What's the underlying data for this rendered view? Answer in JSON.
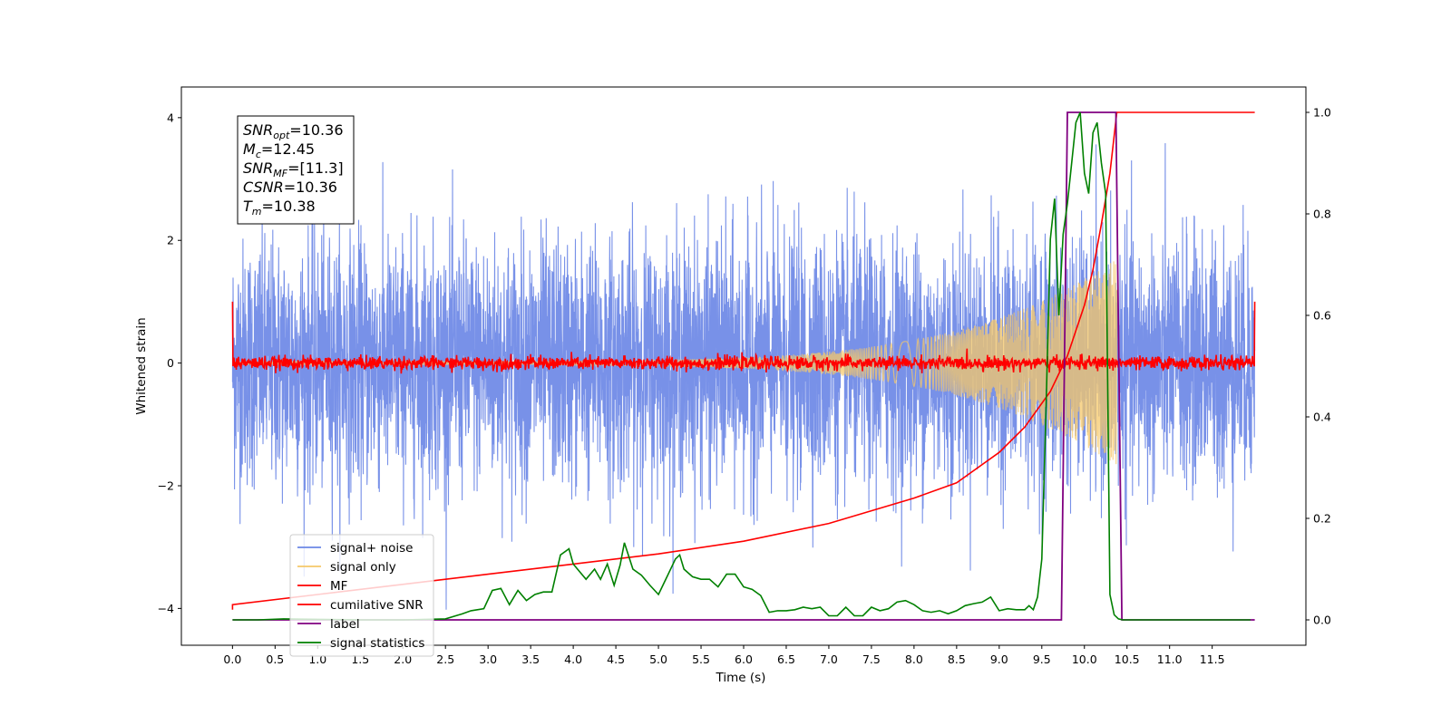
{
  "chart_data": {
    "type": "line",
    "xlabel": "Time (s)",
    "ylabel": "Whitened strain",
    "xlim": [
      -0.6,
      12.6
    ],
    "ylim": [
      -4.6,
      4.5
    ],
    "y2lim": [
      -0.05,
      1.05
    ],
    "x_ticks": [
      0.0,
      0.5,
      1.0,
      1.5,
      2.0,
      2.5,
      3.0,
      3.5,
      4.0,
      4.5,
      5.0,
      5.5,
      6.0,
      6.5,
      7.0,
      7.5,
      8.0,
      8.5,
      9.0,
      9.5,
      10.0,
      10.5,
      11.0,
      11.5
    ],
    "x_tick_labels": [
      "0.0",
      "0.5",
      "1.0",
      "1.5",
      "2.0",
      "2.5",
      "3.0",
      "3.5",
      "4.0",
      "4.5",
      "5.0",
      "5.5",
      "6.0",
      "6.5",
      "7.0",
      "7.5",
      "8.0",
      "8.5",
      "9.0",
      "9.5",
      "10.0",
      "10.5",
      "11.0",
      "11.5"
    ],
    "y_ticks": [
      -4,
      -2,
      0,
      2,
      4
    ],
    "y_tick_labels": [
      "−4",
      "−2",
      "0",
      "2",
      "4"
    ],
    "y2_ticks": [
      0.0,
      0.2,
      0.4,
      0.6,
      0.8,
      1.0
    ],
    "y2_tick_labels": [
      "0.0",
      "0.2",
      "0.4",
      "0.6",
      "0.8",
      "1.0"
    ],
    "legend_position": "lower-left",
    "grid": false,
    "stats_box": [
      {
        "var": "SNR",
        "sub": "opt",
        "value": "=10.36"
      },
      {
        "var": "M",
        "sub": "c",
        "value": "=12.45"
      },
      {
        "var": "SNR",
        "sub": "MF",
        "value": "=[11.3]"
      },
      {
        "var": "CSNR",
        "sub": "",
        "value": "=10.36"
      },
      {
        "var": "T",
        "sub": "m",
        "value": "=10.38"
      }
    ],
    "series": [
      {
        "name": "signal+ noise",
        "axis": "left",
        "color": "#6c88e6",
        "description_values": {
          "x_range": [
            0.0,
            12.0
          ],
          "amplitude_std": 1.0,
          "peak_max": 4.05,
          "peak_min": -4.1
        }
      },
      {
        "name": "signal only",
        "axis": "left",
        "color": "#f5c86a",
        "chirp": {
          "x_start": 0.0,
          "x_end": 10.38,
          "amplitude_start": 0.03,
          "amplitude_end": 1.7
        }
      },
      {
        "name": "MF",
        "axis": "left",
        "color": "#ff0000",
        "description_values": {
          "x_range": [
            0.0,
            12.0
          ],
          "level": 0.0,
          "edge_value": 1.0
        }
      },
      {
        "name": "cumilative SNR",
        "axis": "right",
        "color": "#ff0000",
        "x": [
          0.0,
          0.0,
          1.0,
          2.0,
          3.0,
          4.0,
          5.0,
          6.0,
          7.0,
          8.0,
          8.5,
          9.0,
          9.3,
          9.6,
          9.8,
          10.0,
          10.1,
          10.2,
          10.3,
          10.38,
          12.0
        ],
        "values": [
          0.02,
          0.03,
          0.05,
          0.07,
          0.09,
          0.11,
          0.13,
          0.155,
          0.19,
          0.24,
          0.27,
          0.33,
          0.38,
          0.45,
          0.52,
          0.62,
          0.69,
          0.78,
          0.88,
          1.0,
          1.0
        ]
      },
      {
        "name": "label",
        "axis": "right",
        "color": "#800080",
        "x": [
          0.0,
          9.73,
          9.8,
          10.37,
          10.44,
          12.0
        ],
        "values": [
          0.0,
          0.0,
          1.0,
          1.0,
          0.0,
          0.0
        ]
      },
      {
        "name": "signal statistics",
        "axis": "right",
        "color": "#008000",
        "x": [
          0.0,
          0.3,
          0.6,
          1.0,
          1.5,
          2.0,
          2.5,
          2.7,
          2.8,
          2.95,
          3.05,
          3.15,
          3.25,
          3.35,
          3.45,
          3.55,
          3.65,
          3.75,
          3.85,
          3.95,
          4.0,
          4.05,
          4.15,
          4.25,
          4.32,
          4.4,
          4.48,
          4.55,
          4.6,
          4.7,
          4.8,
          4.9,
          5.0,
          5.1,
          5.2,
          5.25,
          5.3,
          5.4,
          5.5,
          5.6,
          5.7,
          5.8,
          5.9,
          6.0,
          6.1,
          6.2,
          6.3,
          6.4,
          6.5,
          6.6,
          6.7,
          6.8,
          6.9,
          7.0,
          7.1,
          7.2,
          7.3,
          7.4,
          7.5,
          7.6,
          7.7,
          7.8,
          7.9,
          8.0,
          8.1,
          8.2,
          8.3,
          8.4,
          8.5,
          8.6,
          8.7,
          8.8,
          8.9,
          9.0,
          9.1,
          9.2,
          9.3,
          9.35,
          9.4,
          9.45,
          9.5,
          9.55,
          9.6,
          9.65,
          9.7,
          9.75,
          9.8,
          9.85,
          9.9,
          9.95,
          10.0,
          10.05,
          10.1,
          10.15,
          10.2,
          10.25,
          10.3,
          10.35,
          10.4,
          10.45,
          10.5,
          10.6,
          11.0,
          11.5,
          11.95
        ],
        "values": [
          0.0,
          0.0,
          0.002,
          0.001,
          0.0,
          0.0,
          0.002,
          0.012,
          0.018,
          0.022,
          0.058,
          0.062,
          0.03,
          0.058,
          0.038,
          0.05,
          0.055,
          0.055,
          0.128,
          0.14,
          0.11,
          0.1,
          0.08,
          0.1,
          0.08,
          0.11,
          0.068,
          0.108,
          0.152,
          0.1,
          0.088,
          0.068,
          0.05,
          0.085,
          0.12,
          0.128,
          0.1,
          0.085,
          0.08,
          0.08,
          0.065,
          0.09,
          0.09,
          0.065,
          0.06,
          0.048,
          0.015,
          0.018,
          0.018,
          0.02,
          0.025,
          0.022,
          0.025,
          0.008,
          0.008,
          0.025,
          0.008,
          0.008,
          0.025,
          0.018,
          0.022,
          0.035,
          0.038,
          0.03,
          0.018,
          0.015,
          0.018,
          0.012,
          0.018,
          0.028,
          0.032,
          0.035,
          0.045,
          0.018,
          0.022,
          0.02,
          0.02,
          0.028,
          0.02,
          0.045,
          0.12,
          0.42,
          0.75,
          0.83,
          0.6,
          0.76,
          0.82,
          0.9,
          0.98,
          1.0,
          0.88,
          0.84,
          0.96,
          0.98,
          0.9,
          0.84,
          0.05,
          0.01,
          0.002,
          0.0,
          0.0,
          0.0,
          0.0,
          0.0,
          0.0
        ]
      }
    ]
  }
}
